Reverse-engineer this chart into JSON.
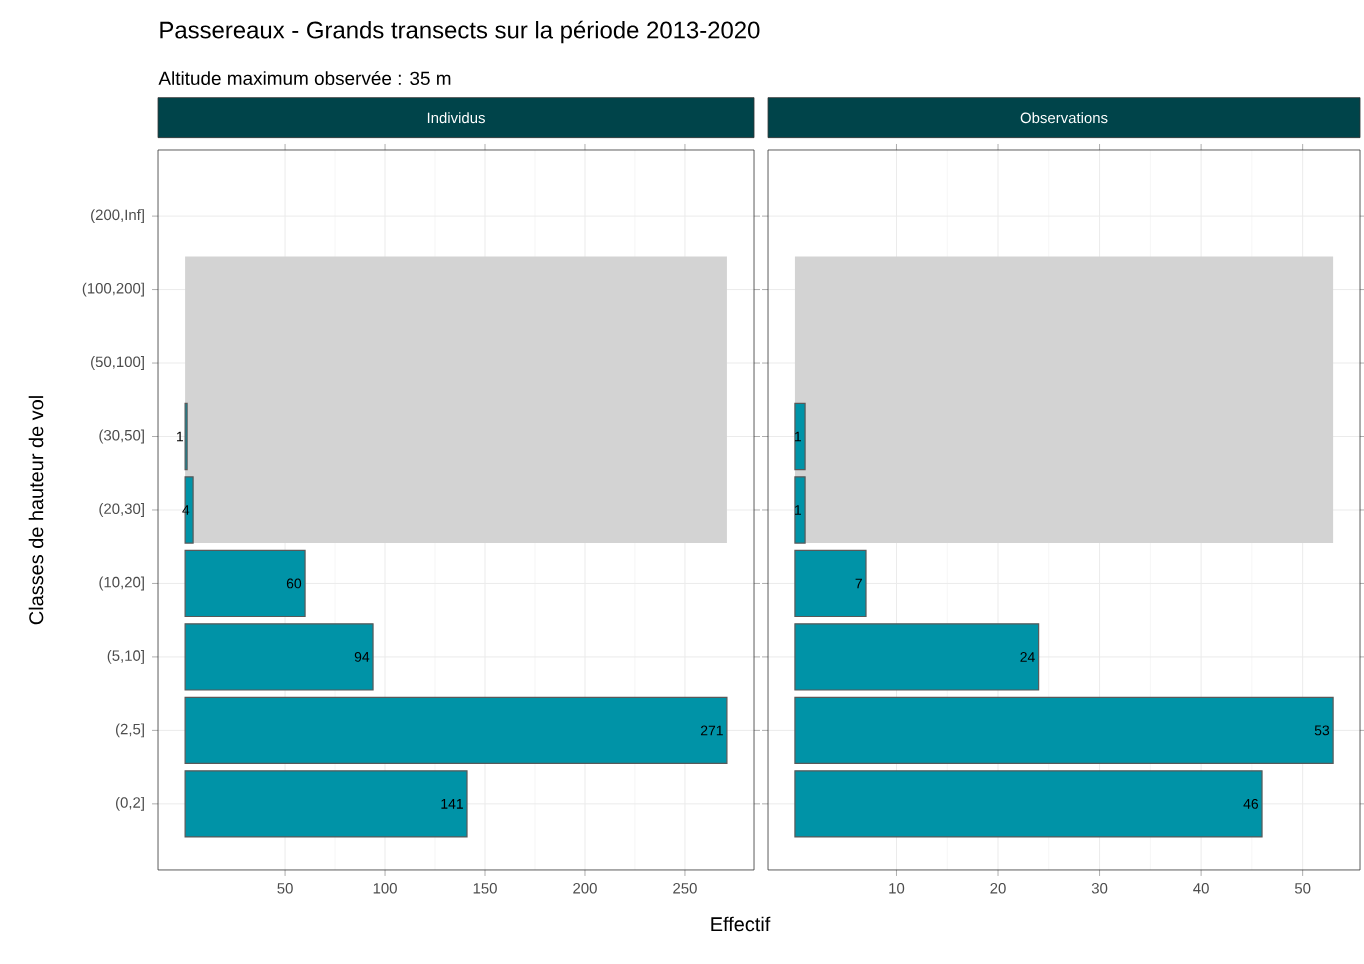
{
  "chart_data": [
    {
      "type": "bar",
      "orientation": "horizontal",
      "title": "Individus",
      "xlabel": "Effectif",
      "ylabel": "Classes de hauteur de vol",
      "annotations": [
        "Passereaux - Grands transects sur la période 2013-2020",
        "Altitude maximum observée : 35 m"
      ],
      "categories": [
        "(200,Inf]",
        "(100,200]",
        "(50,100]",
        "(30,50]",
        "(20,30]",
        "(10,20]",
        "(5,10]",
        "(2,5]",
        "(0,2]"
      ],
      "values": [
        0,
        0,
        0,
        1,
        4,
        60,
        94,
        271,
        141
      ],
      "color": "#0093a7",
      "value_labels": [
        null,
        null,
        null,
        "1",
        "4",
        "60",
        "94",
        "271",
        "141"
      ],
      "bands": [
        {
          "axis": "y",
          "from": "(20,30]",
          "to": "(100,200]",
          "color": "#d3d3d3"
        }
      ],
      "xlim": [
        -13.55,
        284.55
      ],
      "xticks": [
        50,
        100,
        150,
        200,
        250
      ],
      "grid": true
    },
    {
      "type": "bar",
      "orientation": "horizontal",
      "title": "Observations",
      "categories": [
        "(200,Inf]",
        "(100,200]",
        "(50,100]",
        "(30,50]",
        "(20,30]",
        "(10,20]",
        "(5,10]",
        "(2,5]",
        "(0,2]"
      ],
      "values": [
        0,
        0,
        0,
        1,
        1,
        7,
        24,
        53,
        46
      ],
      "color": "#0093a7",
      "value_labels": [
        null,
        null,
        null,
        "1",
        "1",
        "7",
        "24",
        "53",
        "46"
      ],
      "bands": [
        {
          "axis": "y",
          "from": "(20,30]",
          "to": "(100,200]",
          "color": "#d3d3d3"
        }
      ],
      "xlim": [
        -2.65,
        55.65
      ],
      "xticks": [
        10,
        20,
        30,
        40,
        50
      ],
      "grid": true,
      "tick_labels": "x"
    }
  ]
}
